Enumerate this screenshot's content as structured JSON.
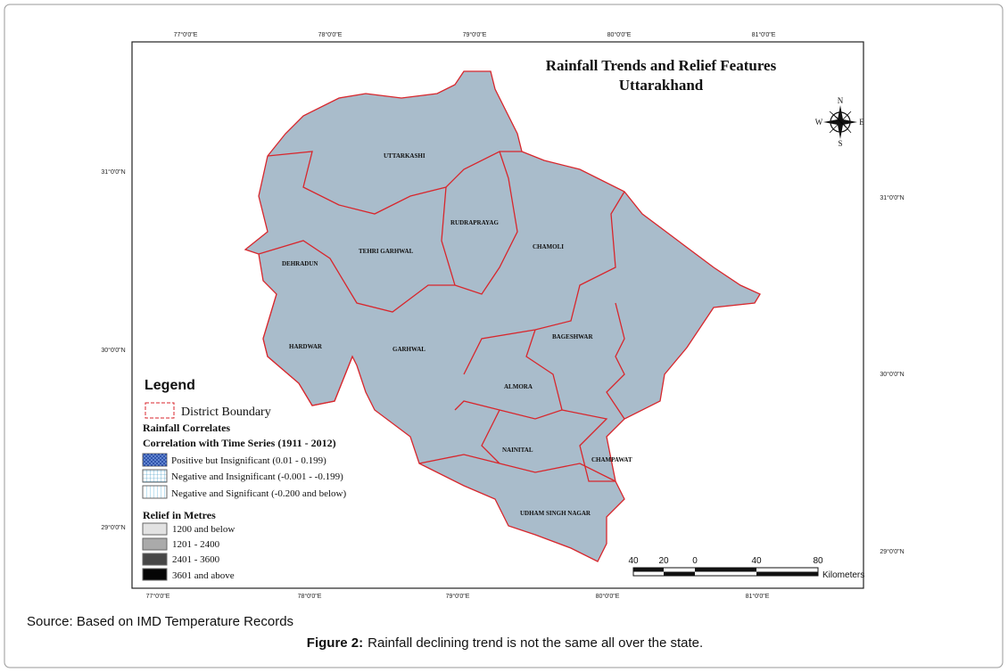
{
  "map": {
    "title": [
      "Rainfall Trends and Relief Features",
      "Uttarakhand"
    ],
    "top_longitudes": [
      "77°0'0\"E",
      "78°0'0\"E",
      "79°0'0\"E",
      "80°0'0\"E",
      "81°0'0\"E"
    ],
    "bottom_longitudes": [
      "77°0'0\"E",
      "78°0'0\"E",
      "79°0'0\"E",
      "80°0'0\"E",
      "81°0'0\"E"
    ],
    "left_latitudes": [
      "31°0'0\"N",
      "30°0'0\"N",
      "29°0'0\"N"
    ],
    "right_latitudes": [
      "31°0'0\"N",
      "30°0'0\"N",
      "29°0'0\"N"
    ],
    "districts": [
      "UTTARKASHI",
      "RUDRAPRAYAG",
      "CHAMOLI",
      "TEHRI GARHWAL",
      "DEHRADUN",
      "HARDWAR",
      "GARHWAL",
      "BAGESHWAR",
      "ALMORA",
      "NAINITAL",
      "CHAMPAWAT",
      "UDHAM SINGH NAGAR"
    ],
    "compass": {
      "n": "N",
      "s": "S",
      "e": "E",
      "w": "W"
    },
    "scale": {
      "ticks": [
        "40",
        "20",
        "0",
        "40",
        "80"
      ],
      "unit": "Kilometers"
    }
  },
  "legend": {
    "title": "Legend",
    "boundary": "District Boundary",
    "rainfall_title": "Rainfall Correlates",
    "rainfall_subtitle": "Correlation with Time Series (1911 - 2012)",
    "rainfall_items": [
      "Positive but Insignificant (0.01 - 0.199)",
      "Negative and Insignificant (-0.001 - -0.199)",
      "Negative and Significant (-0.200 and below)"
    ],
    "relief_title": "Relief in Metres",
    "relief_items": [
      "1200 and below",
      "1201 - 2400",
      "2401 - 3600",
      "3601 and above"
    ]
  },
  "source": "Source: Based on IMD Temperature Records",
  "caption": {
    "label": "Figure 2:",
    "text": "Rainfall declining trend is not the same all over the state."
  }
}
